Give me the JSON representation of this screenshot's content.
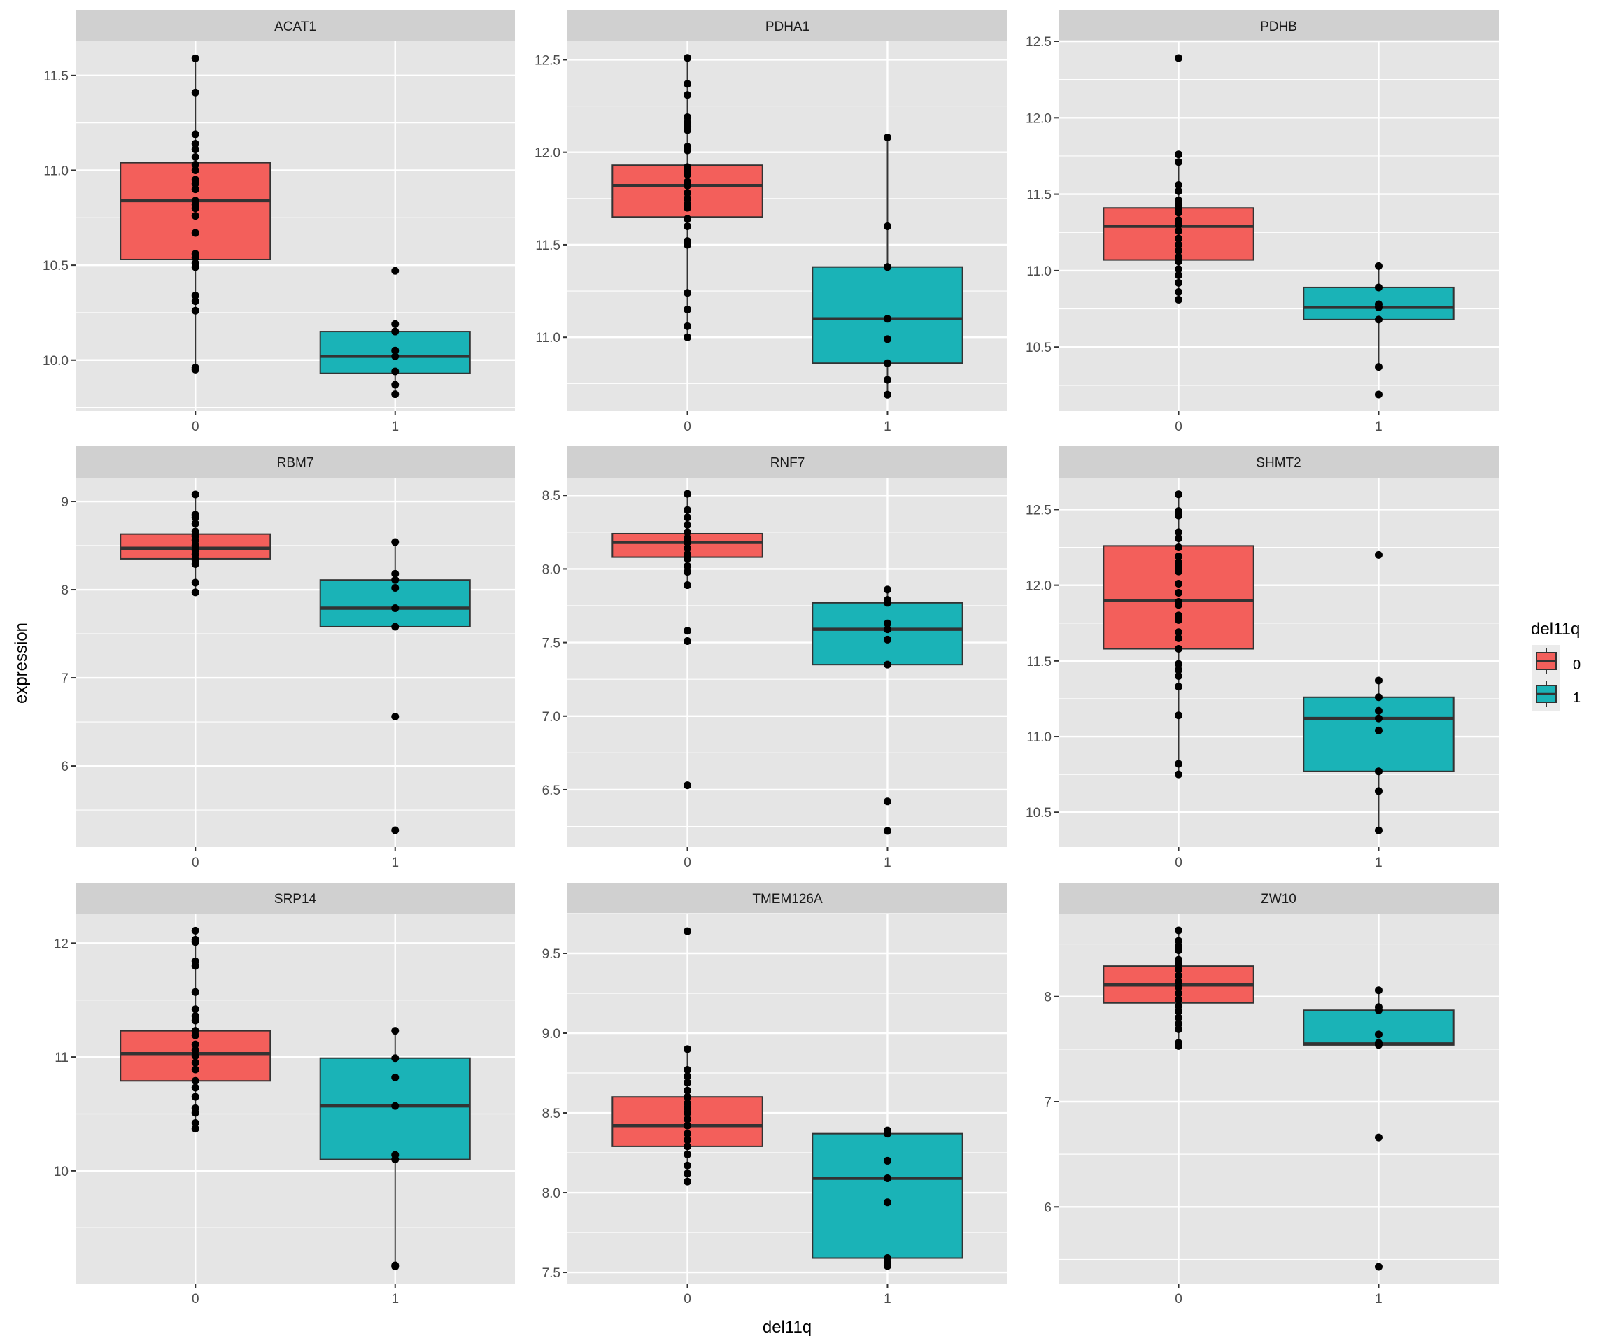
{
  "chart_data": {
    "type": "box",
    "subtype": "faceted boxplot with jittered points (facet_wrap, free y scales)",
    "xlabel": "del11q",
    "ylabel": "expression",
    "categories": [
      "0",
      "1"
    ],
    "legend": {
      "title": "del11q",
      "placement": "right",
      "entries": [
        {
          "label": "0",
          "color": "#F8766D"
        },
        {
          "label": "1",
          "color": "#00BFC4"
        }
      ]
    },
    "colors": {
      "group0_fill": "#F35F5B",
      "group1_fill": "#1AB3B7",
      "panel_bg": "#E5E5E5",
      "strip_bg": "#D0D0D0",
      "grid": "#FFFFFF"
    },
    "grid": true,
    "panels": [
      {
        "title": "ACAT1",
        "ylim": [
          9.73,
          11.68
        ],
        "yticks": [
          10.0,
          10.5,
          11.0,
          11.5
        ],
        "ytick_labels": [
          "10.0",
          "10.5",
          "11.0",
          "11.5"
        ],
        "groups": [
          {
            "x": "0",
            "q1": 10.53,
            "median": 10.84,
            "q3": 11.04,
            "whisker_low": 9.95,
            "whisker_high": 11.59,
            "points": [
              11.59,
              11.41,
              11.19,
              11.14,
              11.11,
              11.07,
              11.03,
              11.0,
              10.95,
              10.93,
              10.9,
              10.84,
              10.82,
              10.8,
              10.76,
              10.67,
              10.56,
              10.54,
              10.51,
              10.49,
              10.34,
              10.31,
              10.26,
              9.96,
              9.95
            ]
          },
          {
            "x": "1",
            "q1": 9.93,
            "median": 10.02,
            "q3": 10.15,
            "whisker_low": 9.82,
            "whisker_high": 10.19,
            "points": [
              10.47,
              10.19,
              10.15,
              10.05,
              10.02,
              9.94,
              9.87,
              9.82
            ]
          }
        ]
      },
      {
        "title": "PDHA1",
        "ylim": [
          10.6,
          12.6
        ],
        "yticks": [
          11.0,
          11.5,
          12.0,
          12.5
        ],
        "ytick_labels": [
          "11.0",
          "11.5",
          "12.0",
          "12.5"
        ],
        "groups": [
          {
            "x": "0",
            "q1": 11.65,
            "median": 11.82,
            "q3": 11.93,
            "whisker_low": 11.0,
            "whisker_high": 12.51,
            "points": [
              12.51,
              12.37,
              12.31,
              12.19,
              12.16,
              12.14,
              12.12,
              12.03,
              12.01,
              11.92,
              11.9,
              11.88,
              11.84,
              11.82,
              11.78,
              11.75,
              11.72,
              11.7,
              11.64,
              11.6,
              11.52,
              11.5,
              11.24,
              11.15,
              11.06,
              11.0
            ]
          },
          {
            "x": "1",
            "q1": 10.86,
            "median": 11.1,
            "q3": 11.38,
            "whisker_low": 10.69,
            "whisker_high": 12.08,
            "points": [
              12.08,
              11.6,
              11.38,
              11.1,
              10.99,
              10.86,
              10.77,
              10.69
            ]
          }
        ]
      },
      {
        "title": "PDHB",
        "ylim": [
          10.08,
          12.5
        ],
        "yticks": [
          10.5,
          11.0,
          11.5,
          12.0,
          12.5
        ],
        "ytick_labels": [
          "10.5",
          "11.0",
          "11.5",
          "12.0",
          "12.5"
        ],
        "groups": [
          {
            "x": "0",
            "q1": 11.07,
            "median": 11.29,
            "q3": 11.41,
            "whisker_low": 10.81,
            "whisker_high": 11.71,
            "points": [
              12.39,
              11.76,
              11.71,
              11.56,
              11.52,
              11.46,
              11.43,
              11.4,
              11.38,
              11.33,
              11.3,
              11.26,
              11.21,
              11.17,
              11.13,
              11.09,
              11.06,
              11.01,
              10.97,
              10.92,
              10.86,
              10.81
            ]
          },
          {
            "x": "1",
            "q1": 10.68,
            "median": 10.76,
            "q3": 10.89,
            "whisker_low": 10.37,
            "whisker_high": 11.03,
            "points": [
              11.03,
              10.89,
              10.78,
              10.76,
              10.68,
              10.37,
              10.19
            ]
          }
        ]
      },
      {
        "title": "RBM7",
        "ylim": [
          5.08,
          9.27
        ],
        "yticks": [
          6,
          7,
          8,
          9
        ],
        "ytick_labels": [
          "6",
          "7",
          "8",
          "9"
        ],
        "groups": [
          {
            "x": "0",
            "q1": 8.35,
            "median": 8.47,
            "q3": 8.63,
            "whisker_low": 7.97,
            "whisker_high": 9.08,
            "points": [
              9.08,
              8.85,
              8.82,
              8.75,
              8.66,
              8.61,
              8.56,
              8.5,
              8.45,
              8.4,
              8.34,
              8.29,
              8.08,
              7.97
            ]
          },
          {
            "x": "1",
            "q1": 7.58,
            "median": 7.79,
            "q3": 8.11,
            "whisker_low": 7.58,
            "whisker_high": 8.54,
            "points": [
              8.54,
              8.18,
              8.11,
              8.02,
              7.79,
              7.58,
              6.56,
              5.27
            ]
          }
        ]
      },
      {
        "title": "RNF7",
        "ylim": [
          6.11,
          8.62
        ],
        "yticks": [
          6.5,
          7.0,
          7.5,
          8.0,
          8.5
        ],
        "ytick_labels": [
          "6.5",
          "7.0",
          "7.5",
          "8.0",
          "8.5"
        ],
        "groups": [
          {
            "x": "0",
            "q1": 8.08,
            "median": 8.18,
            "q3": 8.24,
            "whisker_low": 7.89,
            "whisker_high": 8.51,
            "points": [
              8.51,
              8.4,
              8.35,
              8.3,
              8.25,
              8.21,
              8.18,
              8.14,
              8.1,
              8.07,
              8.02,
              7.98,
              7.89,
              7.58,
              7.51,
              6.53
            ]
          },
          {
            "x": "1",
            "q1": 7.35,
            "median": 7.59,
            "q3": 7.77,
            "whisker_low": 7.35,
            "whisker_high": 7.86,
            "points": [
              7.86,
              7.79,
              7.77,
              7.63,
              7.59,
              7.52,
              7.35,
              6.42,
              6.22
            ]
          }
        ]
      },
      {
        "title": "SHMT2",
        "ylim": [
          10.27,
          12.71
        ],
        "yticks": [
          10.5,
          11.0,
          11.5,
          12.0,
          12.5
        ],
        "ytick_labels": [
          "10.5",
          "11.0",
          "11.5",
          "12.0",
          "12.5"
        ],
        "groups": [
          {
            "x": "0",
            "q1": 11.58,
            "median": 11.9,
            "q3": 12.26,
            "whisker_low": 10.75,
            "whisker_high": 12.6,
            "points": [
              12.6,
              12.49,
              12.46,
              12.35,
              12.31,
              12.25,
              12.19,
              12.15,
              12.12,
              12.09,
              12.01,
              11.95,
              11.89,
              11.87,
              11.8,
              11.77,
              11.69,
              11.65,
              11.58,
              11.48,
              11.44,
              11.4,
              11.33,
              11.14,
              10.82,
              10.75
            ]
          },
          {
            "x": "1",
            "q1": 10.77,
            "median": 11.12,
            "q3": 11.26,
            "whisker_low": 10.38,
            "whisker_high": 11.37,
            "points": [
              12.2,
              11.37,
              11.26,
              11.17,
              11.12,
              11.04,
              10.77,
              10.64,
              10.38
            ]
          }
        ]
      },
      {
        "title": "SRP14",
        "ylim": [
          9.01,
          12.26
        ],
        "yticks": [
          10,
          11,
          12
        ],
        "ytick_labels": [
          "10",
          "11",
          "12"
        ],
        "groups": [
          {
            "x": "0",
            "q1": 10.79,
            "median": 11.03,
            "q3": 11.23,
            "whisker_low": 10.37,
            "whisker_high": 12.11,
            "points": [
              12.11,
              12.03,
              12.01,
              11.84,
              11.8,
              11.57,
              11.42,
              11.36,
              11.32,
              11.23,
              11.19,
              11.11,
              11.06,
              11.01,
              10.95,
              10.89,
              10.79,
              10.73,
              10.65,
              10.55,
              10.51,
              10.42,
              10.37
            ]
          },
          {
            "x": "1",
            "q1": 10.1,
            "median": 10.57,
            "q3": 10.99,
            "whisker_low": 9.16,
            "whisker_high": 11.23,
            "points": [
              11.23,
              10.99,
              10.82,
              10.57,
              10.14,
              10.1,
              9.17,
              9.16
            ]
          }
        ]
      },
      {
        "title": "TMEM126A",
        "ylim": [
          7.43,
          9.75
        ],
        "yticks": [
          7.5,
          8.0,
          8.5,
          9.0,
          9.5
        ],
        "ytick_labels": [
          "7.5",
          "8.0",
          "8.5",
          "9.0",
          "9.5"
        ],
        "groups": [
          {
            "x": "0",
            "q1": 8.29,
            "median": 8.42,
            "q3": 8.6,
            "whisker_low": 8.07,
            "whisker_high": 8.9,
            "points": [
              9.64,
              8.9,
              8.77,
              8.73,
              8.69,
              8.64,
              8.6,
              8.56,
              8.53,
              8.5,
              8.46,
              8.42,
              8.37,
              8.33,
              8.29,
              8.24,
              8.17,
              8.12,
              8.07
            ]
          },
          {
            "x": "1",
            "q1": 7.59,
            "median": 8.09,
            "q3": 8.37,
            "whisker_low": 7.54,
            "whisker_high": 8.39,
            "points": [
              8.39,
              8.37,
              8.2,
              8.09,
              7.94,
              7.59,
              7.56,
              7.54
            ]
          }
        ]
      },
      {
        "title": "ZW10",
        "ylim": [
          5.27,
          8.79
        ],
        "yticks": [
          6,
          7,
          8
        ],
        "ytick_labels": [
          "6",
          "7",
          "8"
        ],
        "groups": [
          {
            "x": "0",
            "q1": 7.94,
            "median": 8.11,
            "q3": 8.29,
            "whisker_low": 7.53,
            "whisker_high": 8.63,
            "points": [
              8.63,
              8.53,
              8.48,
              8.44,
              8.35,
              8.31,
              8.26,
              8.2,
              8.14,
              8.09,
              8.03,
              7.97,
              7.91,
              7.86,
              7.8,
              7.74,
              7.69,
              7.56,
              7.53
            ]
          },
          {
            "x": "1",
            "q1": 7.54,
            "median": 7.55,
            "q3": 7.87,
            "whisker_low": 7.54,
            "whisker_high": 8.06,
            "points": [
              8.06,
              7.9,
              7.87,
              7.64,
              7.56,
              7.54,
              6.66,
              5.43
            ]
          }
        ]
      }
    ]
  }
}
